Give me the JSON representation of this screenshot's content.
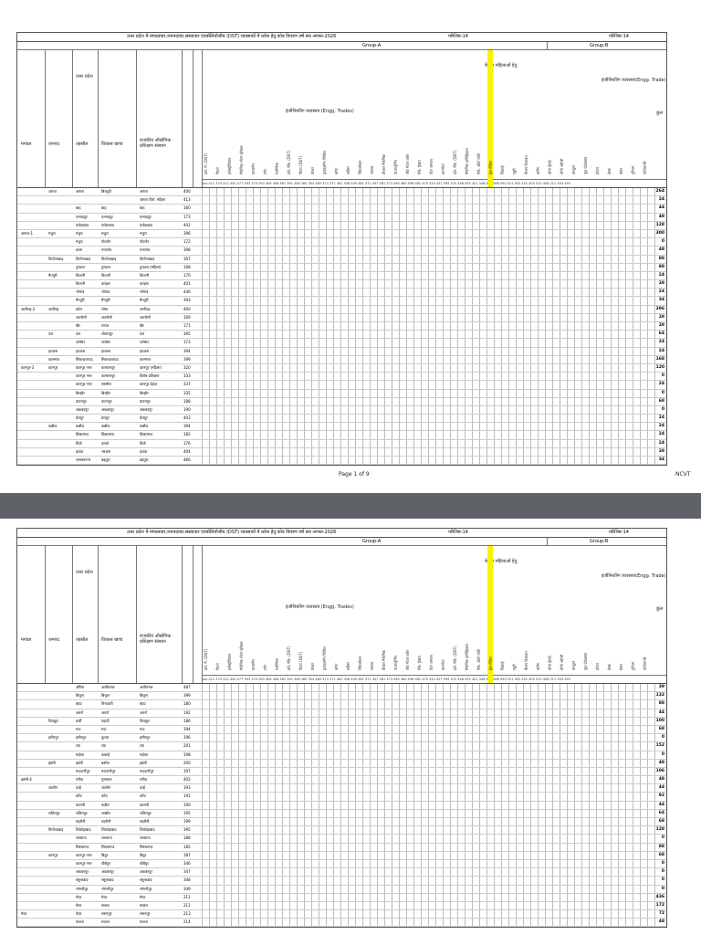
{
  "doc": {
    "title": "उत्तर प्रदेश में मण्डलवार,जनपदवार,संस्थावार एंवबोलिवोजीय (DST) व्यवसायों में प्रवेश हेतु कोड विवरण वर्ष सत्र अगस्त-2026",
    "appendix": "परिशिष्ट-14",
    "group_a": "Group-A",
    "group_b": "Group-B",
    "state": "उत्तर प्रदेश",
    "engg_trades": "इंजीनियरिंग व्यवसाय (Engg. Trades)",
    "engg_trade_b": "इंजीनियरिंग व्यवसाय(Engg. Trade)",
    "non_engg": "( Non Engg. Trade)",
    "women_only": "केवल महिलाओं हेतु",
    "col_mandal": "मण्डल",
    "col_janpad": "जनपद",
    "col_tehsil": "तहसील",
    "col_vikas": "विकास खण्ड",
    "col_institute": "राजकीय औद्योगिक प्रशिक्षण संस्थान",
    "col_code": "संस्थान का कोड",
    "col_total": "कुल",
    "trade_headers": [
      "इले. मै. (DST)",
      "फिटर",
      "इलेक्ट्रीशियन",
      "मैकेनिक मोटर व्हीकल",
      "वायरमैन",
      "टर्नर",
      "मशीनिस्ट",
      "इले. मैके. (DST)",
      "फिटर (DST)",
      "वेल्डर",
      "ड्राफ्ट्समैन सिविल",
      "कोपा",
      "सर्वेयर",
      "रेफ्रिजरेशन",
      "प्लम्बर",
      "डीजल मैकेनिक",
      "फाउण्ड्रीमैन",
      "शीट मेटल वर्कर",
      "मैके. ट्रैक्टर",
      "पेंटर जनरल",
      "कारपेंटर",
      "इले. मैके. (DST)",
      "मैकेनिक इलेक्ट्रिकल",
      "मैके. ऑटो बॉडी",
      "ड्रेस मेकिंग",
      "सिलाई",
      "ब्यूटी",
      "फैशन डिजाइन",
      "कटिंग",
      "स्टेनो हिन्दी",
      "स्टेनो अंग्रेजी",
      "कंप्यूटर",
      "फूड प्रोडक्शन",
      "होटल",
      "डेस्क",
      "बेकर",
      "टूरिज्म",
      "फोटोग्राफी"
    ],
    "page_label": "Page 1 of 9",
    "ncvt": "NCVT",
    "rows_p1": [
      {
        "m": "",
        "j": "आगरा",
        "t": "आगरा",
        "v": "बिचपुरी",
        "i": "आगरा",
        "c": "400",
        "tot": "264"
      },
      {
        "m": "",
        "j": "",
        "t": "",
        "v": "",
        "i": "आगरा विशे. महिला",
        "c": "413",
        "tot": "24"
      },
      {
        "m": "",
        "j": "",
        "t": "बाह",
        "v": "बाह",
        "i": "बाह",
        "c": "160",
        "tot": "44"
      },
      {
        "m": "",
        "j": "",
        "t": "एत्मादपुर",
        "v": "एत्मादपुर",
        "i": "एत्मादपुर",
        "c": "173",
        "tot": "48"
      },
      {
        "m": "",
        "j": "",
        "t": "फतेहाबाद",
        "v": "फतेहाबाद",
        "i": "फतेहाबाद",
        "c": "402",
        "tot": "128"
      },
      {
        "m": "आगरा-1",
        "j": "मथुरा",
        "t": "मथुरा",
        "v": "मथुरा",
        "i": "मथुरा",
        "c": "396",
        "tot": "300"
      },
      {
        "m": "",
        "j": "",
        "t": "मथुरा",
        "v": "गोवर्धन",
        "i": "गोवर्धन",
        "c": "172",
        "tot": "0"
      },
      {
        "m": "",
        "j": "",
        "t": "छाता",
        "v": "नन्दगांव",
        "i": "नन्दगांव",
        "c": "398",
        "tot": "48"
      },
      {
        "m": "",
        "j": "फिरोजाबाद",
        "t": "फिरोजाबाद",
        "v": "फिरोजाबाद",
        "i": "फिरोजाबाद",
        "c": "167",
        "tot": "88"
      },
      {
        "m": "",
        "j": "",
        "t": "टूण्डला",
        "v": "टूण्डला",
        "i": "टूण्डला (महिला)",
        "c": "168",
        "tot": "88"
      },
      {
        "m": "",
        "j": "मैनपुरी",
        "t": "किशनी",
        "v": "किशनी",
        "i": "किशनी",
        "c": "170",
        "tot": "24"
      },
      {
        "m": "",
        "j": "",
        "t": "किशनी",
        "v": "करहल",
        "i": "करहल",
        "c": "401",
        "tot": "28"
      },
      {
        "m": "",
        "j": "",
        "t": "भोगांव",
        "v": "भोगांव",
        "i": "भोगांव",
        "c": "446",
        "tot": "24"
      },
      {
        "m": "",
        "j": "",
        "t": "मैनपुरी",
        "v": "मैनपुरी",
        "i": "मैनपुरी",
        "c": "393",
        "tot": "34"
      },
      {
        "m": "अलीगढ़-2",
        "j": "अलीगढ़",
        "t": "कोल",
        "v": "लोधा",
        "i": "अलीगढ़",
        "c": "400",
        "tot": "296"
      },
      {
        "m": "",
        "j": "",
        "t": "अतरौली",
        "v": "अतरौली",
        "i": "अतरौली",
        "c": "169",
        "tot": "28"
      },
      {
        "m": "",
        "j": "",
        "t": "खैर",
        "v": "टप्पल",
        "i": "खैर",
        "c": "171",
        "tot": "28"
      },
      {
        "m": "",
        "j": "एटा",
        "t": "एटा",
        "v": "शीतलपुर",
        "i": "एटा",
        "c": "395",
        "tot": "64"
      },
      {
        "m": "",
        "j": "",
        "t": "जलेसर",
        "v": "जलेसर",
        "i": "जलेसर",
        "c": "173",
        "tot": "24"
      },
      {
        "m": "",
        "j": "हाथरस",
        "t": "हाथरस",
        "v": "हाथरस",
        "i": "हाथरस",
        "c": "394",
        "tot": "24"
      },
      {
        "m": "",
        "j": "कासगंज",
        "t": "सिकन्दराराऊ",
        "v": "सिकन्दराराऊ",
        "i": "कासगंज",
        "c": "399",
        "tot": "168"
      },
      {
        "m": "कानपुर-3",
        "j": "कानपुर",
        "t": "कानपुर नगर",
        "v": "कल्याणपुर",
        "i": "कानपुर (महिला)",
        "c": "320",
        "tot": "120"
      },
      {
        "m": "",
        "j": "",
        "t": "कानपुर नगर",
        "v": "कल्याणपुर",
        "i": "विशेष प्रशिक्षण",
        "c": "333",
        "tot": "0"
      },
      {
        "m": "",
        "j": "",
        "t": "कानपुर नगर",
        "v": "सरसौल",
        "i": "कानपुर देहात",
        "c": "337",
        "tot": "24"
      },
      {
        "m": "",
        "j": "",
        "t": "बिल्हौर",
        "v": "बिल्हौर",
        "i": "बिल्हौर",
        "c": "335",
        "tot": "0"
      },
      {
        "m": "",
        "j": "",
        "t": "घाटमपुर",
        "v": "घाटमपुर",
        "i": "घाटमपुर",
        "c": "188",
        "tot": "68"
      },
      {
        "m": "",
        "j": "",
        "t": "अकबरपुर",
        "v": "अकबरपुर",
        "i": "अकबरपुर",
        "c": "190",
        "tot": "0"
      },
      {
        "m": "",
        "j": "",
        "t": "डेरापुर",
        "v": "डेरापुर",
        "i": "डेरापुर",
        "c": "403",
        "tot": "24"
      },
      {
        "m": "",
        "j": "कन्नौज",
        "t": "कन्नौज",
        "v": "कन्नौज",
        "i": "कन्नौज",
        "c": "394",
        "tot": "24"
      },
      {
        "m": "",
        "j": "",
        "t": "छिबरामऊ",
        "v": "छिबरामऊ",
        "i": "छिबरामऊ",
        "c": "182",
        "tot": "24"
      },
      {
        "m": "",
        "j": "",
        "t": "तिर्वा",
        "v": "उमर्दा",
        "i": "तिर्वा",
        "c": "176",
        "tot": "24"
      },
      {
        "m": "",
        "j": "",
        "t": "इटावा",
        "v": "भरथना",
        "i": "इटावा",
        "c": "404",
        "tot": "28"
      },
      {
        "m": "",
        "j": "",
        "t": "जसवंतनगर",
        "v": "बढ़पुरा",
        "i": "बढ़पुरा",
        "c": "466",
        "tot": "34"
      }
    ],
    "rows_p2": [
      {
        "m": "",
        "j": "",
        "t": "औरैया",
        "v": "अजीतमल",
        "i": "अजीतमल",
        "c": "487",
        "tot": "39"
      },
      {
        "m": "",
        "j": "",
        "t": "बिधूना",
        "v": "बिधूना",
        "i": "बिधूना",
        "c": "399",
        "tot": "132"
      },
      {
        "m": "",
        "j": "",
        "t": "बांदा",
        "v": "तिन्दवारी",
        "i": "बांदा",
        "c": "180",
        "tot": "88"
      },
      {
        "m": "",
        "j": "",
        "t": "अतर्रा",
        "v": "अतर्रा",
        "i": "अतर्रा",
        "c": "192",
        "tot": "44"
      },
      {
        "m": "",
        "j": "चित्रकूट",
        "t": "कर्वी",
        "v": "पहाड़ी",
        "i": "चित्रकूट",
        "c": "186",
        "tot": "100"
      },
      {
        "m": "",
        "j": "",
        "t": "मऊ",
        "v": "मऊ",
        "i": "मऊ",
        "c": "194",
        "tot": "68"
      },
      {
        "m": "",
        "j": "हमीरपुर",
        "t": "हमीरपुर",
        "v": "कुरारा",
        "i": "हमीरपुर",
        "c": "196",
        "tot": "0"
      },
      {
        "m": "",
        "j": "",
        "t": "राठ",
        "v": "राठ",
        "i": "राठ",
        "c": "201",
        "tot": "152"
      },
      {
        "m": "",
        "j": "",
        "t": "महोबा",
        "v": "कबरई",
        "i": "महोबा",
        "c": "198",
        "tot": "0"
      },
      {
        "m": "",
        "j": "झांसी",
        "t": "झांसी",
        "v": "बबीना",
        "i": "झांसी",
        "c": "200",
        "tot": "48"
      },
      {
        "m": "",
        "j": "",
        "t": "मऊरानीपुर",
        "v": "मऊरानीपुर",
        "i": "मऊरानीपुर",
        "c": "197",
        "tot": "106"
      },
      {
        "m": "झांसी-4",
        "j": "",
        "t": "गरौठा",
        "v": "गुरसराय",
        "i": "गरौठा",
        "c": "402",
        "tot": "48"
      },
      {
        "m": "",
        "j": "जालौन",
        "t": "उरई",
        "v": "जालौन",
        "i": "उरई",
        "c": "193",
        "tot": "44"
      },
      {
        "m": "",
        "j": "",
        "t": "कोंच",
        "v": "कोंच",
        "i": "कोंच",
        "c": "191",
        "tot": "92"
      },
      {
        "m": "",
        "j": "",
        "t": "कालपी",
        "v": "कदौरा",
        "i": "कालपी",
        "c": "190",
        "tot": "44"
      },
      {
        "m": "",
        "j": "ललितपुर",
        "t": "ललितपुर",
        "v": "जखौरा",
        "i": "ललितपुर",
        "c": "195",
        "tot": "64"
      },
      {
        "m": "",
        "j": "",
        "t": "महरौनी",
        "v": "महरौनी",
        "i": "महरौनी",
        "c": "199",
        "tot": "68"
      },
      {
        "m": "",
        "j": "फिरोजाबाद",
        "t": "शिकोहाबाद",
        "v": "शिकोहाबाद",
        "i": "शिकोहाबाद",
        "c": "395",
        "tot": "128"
      },
      {
        "m": "",
        "j": "",
        "t": "जसराना",
        "v": "जसराना",
        "i": "जसराना",
        "c": "188",
        "tot": "0"
      },
      {
        "m": "",
        "j": "",
        "t": "सिरसागंज",
        "v": "सिरसागंज",
        "i": "सिरसागंज",
        "c": "185",
        "tot": "88"
      },
      {
        "m": "",
        "j": "कानपुर",
        "t": "कानपुर नगर",
        "v": "बिठूर",
        "i": "बिठूर",
        "c": "187",
        "tot": "68"
      },
      {
        "m": "",
        "j": "",
        "t": "कानपुर नगर",
        "v": "चौबेपुर",
        "i": "चौबेपुर",
        "c": "346",
        "tot": "0"
      },
      {
        "m": "",
        "j": "",
        "t": "अकबरपुर",
        "v": "अकबरपुर",
        "i": "अकबरपुर",
        "c": "347",
        "tot": "0"
      },
      {
        "m": "",
        "j": "",
        "t": "रसूलाबाद",
        "v": "रसूलाबाद",
        "i": "रसूलाबाद",
        "c": "348",
        "tot": "0"
      },
      {
        "m": "",
        "j": "",
        "t": "भोगनीपुर",
        "v": "भोगनीपुर",
        "i": "भोगनीपुर",
        "c": "349",
        "tot": "0"
      },
      {
        "m": "",
        "j": "",
        "t": "मेरठ",
        "v": "मेरठ",
        "i": "मेरठ",
        "c": "211",
        "tot": "436"
      },
      {
        "m": "",
        "j": "",
        "t": "मेरठ",
        "v": "माछरा",
        "i": "माछरा",
        "c": "212",
        "tot": "172"
      },
      {
        "m": "मेरठ",
        "j": "",
        "t": "मेरठ",
        "v": "सरूरपुर",
        "i": "सरूरपुर",
        "c": "213",
        "tot": "72"
      },
      {
        "m": "",
        "j": "",
        "t": "मवाना",
        "v": "मवाना",
        "i": "मवाना",
        "c": "214",
        "tot": "48"
      }
    ]
  }
}
